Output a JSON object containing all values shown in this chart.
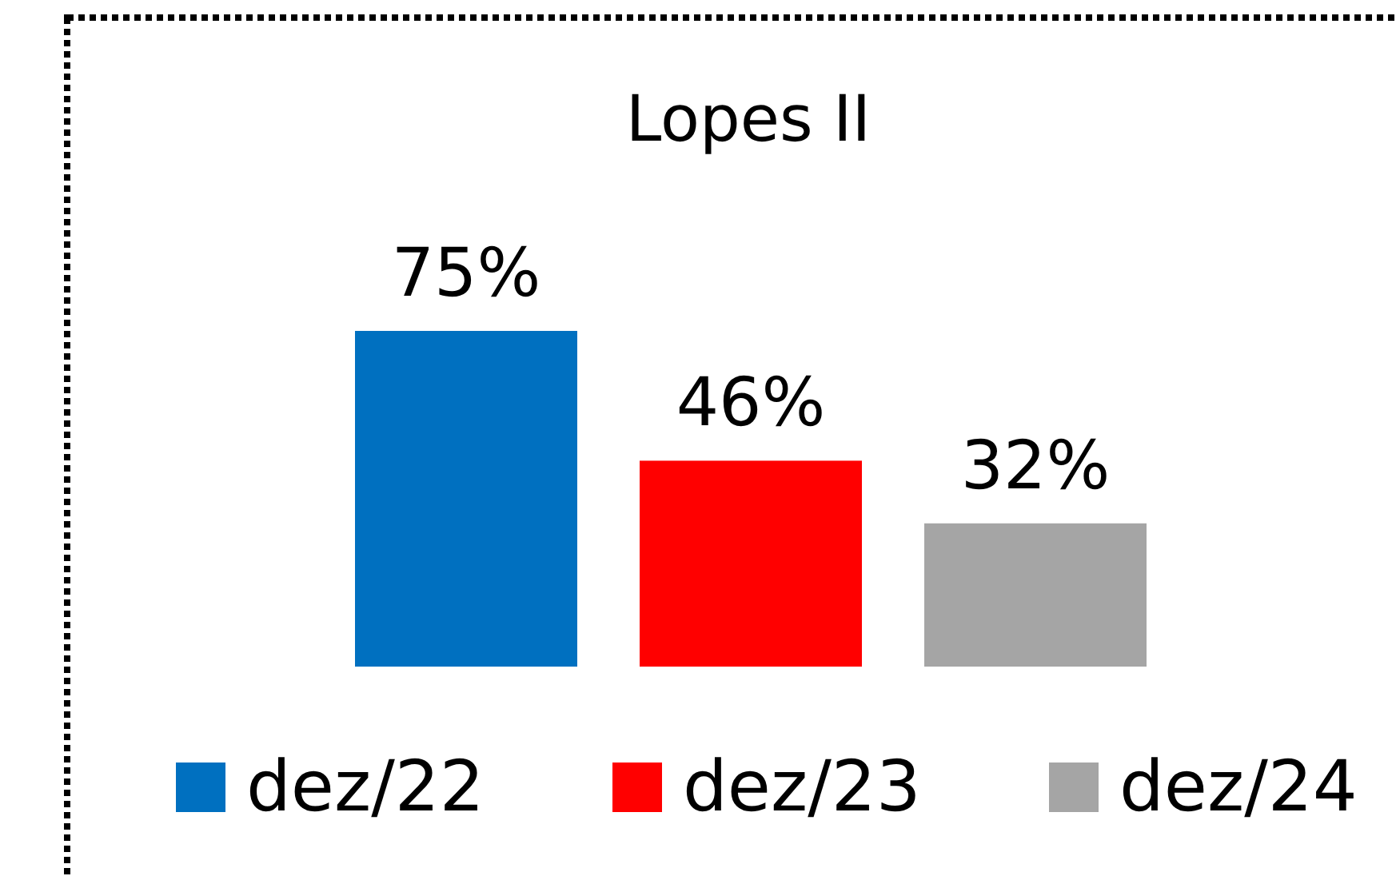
{
  "chart_data": {
    "type": "bar",
    "title": "Lopes II",
    "categories": [
      null
    ],
    "legend": "bottom",
    "series": [
      {
        "name": "dez/22",
        "color": "#0070c0",
        "values": [
          75
        ],
        "value_labels": [
          "75%"
        ]
      },
      {
        "name": "dez/23",
        "color": "#ff0000",
        "values": [
          46
        ],
        "value_labels": [
          "46%"
        ]
      },
      {
        "name": "dez/24",
        "color": "#a5a5a5",
        "values": [
          32
        ],
        "value_labels": [
          "32%"
        ]
      }
    ]
  }
}
